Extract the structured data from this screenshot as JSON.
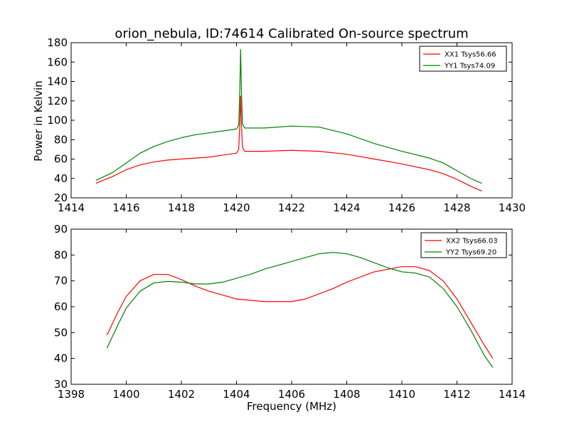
{
  "figure": {
    "title": "orion_nebula, ID:74614 Calibrated On-source spectrum",
    "ylabel": "Power in Kelvin",
    "xlabel": "Frequency (MHz)"
  },
  "chart_data": [
    {
      "type": "line",
      "title": "orion_nebula, ID:74614 Calibrated On-source spectrum",
      "xlabel": "",
      "ylabel": "Power in Kelvin",
      "xlim": [
        1414,
        1430
      ],
      "ylim": [
        20,
        180
      ],
      "xticks": [
        1414,
        1416,
        1418,
        1420,
        1422,
        1424,
        1426,
        1428,
        1430
      ],
      "yticks": [
        20,
        40,
        60,
        80,
        100,
        120,
        140,
        160,
        180
      ],
      "grid": false,
      "legend_position": "top-right",
      "series": [
        {
          "name": "XX1 Tsys56.66",
          "color": "#ff0000",
          "points": [
            [
              1414.9,
              35
            ],
            [
              1415.5,
              42
            ],
            [
              1416,
              49
            ],
            [
              1416.5,
              54
            ],
            [
              1417,
              57
            ],
            [
              1417.5,
              59
            ],
            [
              1418,
              60
            ],
            [
              1418.5,
              61
            ],
            [
              1419,
              62
            ],
            [
              1419.5,
              64
            ],
            [
              1420,
              66
            ],
            [
              1420.08,
              70
            ],
            [
              1420.12,
              95
            ],
            [
              1420.15,
              125
            ],
            [
              1420.18,
              95
            ],
            [
              1420.22,
              72
            ],
            [
              1420.3,
              68
            ],
            [
              1421,
              68
            ],
            [
              1422,
              69
            ],
            [
              1423,
              68
            ],
            [
              1424,
              65
            ],
            [
              1425,
              60
            ],
            [
              1426,
              55
            ],
            [
              1427,
              49
            ],
            [
              1427.5,
              45
            ],
            [
              1428,
              39
            ],
            [
              1428.5,
              32
            ],
            [
              1428.9,
              27
            ]
          ]
        },
        {
          "name": "YY1 Tsys74.09",
          "color": "#008000",
          "points": [
            [
              1414.9,
              38
            ],
            [
              1415.5,
              46
            ],
            [
              1416,
              56
            ],
            [
              1416.5,
              66
            ],
            [
              1417,
              73
            ],
            [
              1417.5,
              78
            ],
            [
              1418,
              82
            ],
            [
              1418.5,
              85
            ],
            [
              1419,
              87
            ],
            [
              1419.5,
              89
            ],
            [
              1420,
              91
            ],
            [
              1420.08,
              95
            ],
            [
              1420.12,
              130
            ],
            [
              1420.15,
              173
            ],
            [
              1420.18,
              130
            ],
            [
              1420.22,
              96
            ],
            [
              1420.3,
              92
            ],
            [
              1421,
              92
            ],
            [
              1422,
              94
            ],
            [
              1423,
              93
            ],
            [
              1424,
              86
            ],
            [
              1425,
              76
            ],
            [
              1426,
              68
            ],
            [
              1427,
              61
            ],
            [
              1427.5,
              56
            ],
            [
              1428,
              48
            ],
            [
              1428.5,
              40
            ],
            [
              1428.9,
              35
            ]
          ]
        }
      ]
    },
    {
      "type": "line",
      "title": "",
      "xlabel": "Frequency (MHz)",
      "ylabel": "",
      "xlim": [
        1398,
        1414
      ],
      "ylim": [
        30,
        90
      ],
      "xticks": [
        1398,
        1400,
        1402,
        1404,
        1406,
        1408,
        1410,
        1412,
        1414
      ],
      "yticks": [
        30,
        40,
        50,
        60,
        70,
        80,
        90
      ],
      "grid": false,
      "legend_position": "top-right",
      "series": [
        {
          "name": "XX2 Tsys66.03",
          "color": "#ff0000",
          "points": [
            [
              1399.3,
              49
            ],
            [
              1399.7,
              58
            ],
            [
              1400,
              64
            ],
            [
              1400.5,
              70
            ],
            [
              1401,
              72.5
            ],
            [
              1401.5,
              72.5
            ],
            [
              1402,
              70.5
            ],
            [
              1402.5,
              68
            ],
            [
              1403,
              66
            ],
            [
              1404,
              63
            ],
            [
              1405,
              62
            ],
            [
              1406,
              62
            ],
            [
              1406.5,
              63
            ],
            [
              1407,
              65
            ],
            [
              1407.5,
              67
            ],
            [
              1408,
              69.5
            ],
            [
              1409,
              73.5
            ],
            [
              1410,
              75.5
            ],
            [
              1410.5,
              75.5
            ],
            [
              1411,
              74
            ],
            [
              1411.5,
              70
            ],
            [
              1412,
              63
            ],
            [
              1412.5,
              54
            ],
            [
              1413,
              45
            ],
            [
              1413.3,
              40
            ]
          ]
        },
        {
          "name": "YY2 Tsys69.20",
          "color": "#008000",
          "points": [
            [
              1399.3,
              44
            ],
            [
              1399.7,
              53
            ],
            [
              1400,
              59.5
            ],
            [
              1400.5,
              66
            ],
            [
              1401,
              69.2
            ],
            [
              1401.5,
              69.8
            ],
            [
              1402,
              69.5
            ],
            [
              1402.5,
              68.8
            ],
            [
              1403,
              68.8
            ],
            [
              1403.5,
              69.5
            ],
            [
              1404,
              71
            ],
            [
              1404.5,
              72.5
            ],
            [
              1405,
              74.5
            ],
            [
              1406,
              77.5
            ],
            [
              1406.5,
              79
            ],
            [
              1407,
              80.5
            ],
            [
              1407.5,
              81
            ],
            [
              1408,
              80.5
            ],
            [
              1408.5,
              79
            ],
            [
              1409,
              77
            ],
            [
              1409.5,
              75
            ],
            [
              1410,
              73.5
            ],
            [
              1410.5,
              73
            ],
            [
              1411,
              71.5
            ],
            [
              1411.5,
              67
            ],
            [
              1412,
              60
            ],
            [
              1412.5,
              51
            ],
            [
              1413,
              41
            ],
            [
              1413.3,
              36.5
            ]
          ]
        }
      ]
    }
  ]
}
